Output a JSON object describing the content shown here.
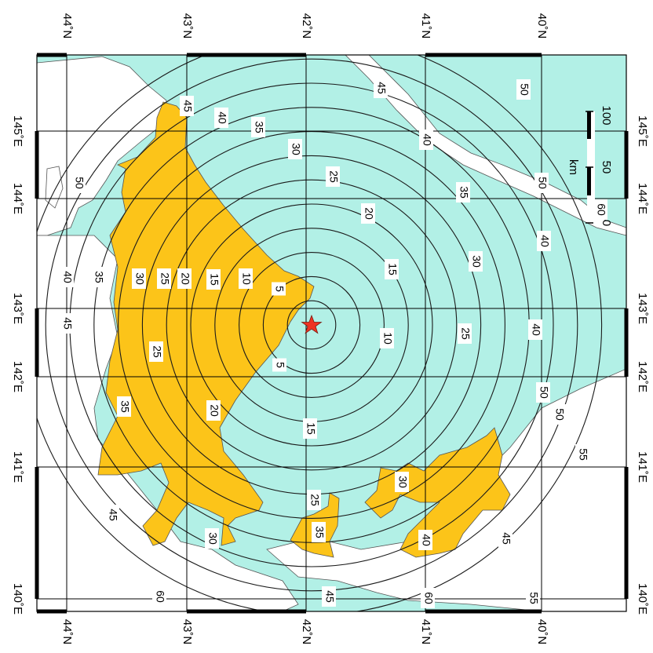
{
  "colors": {
    "sea": "#b2f0e6",
    "land": "#ffffff",
    "intensity_area": "#fcc419",
    "contour": "#1a1a1a",
    "grid": "#000000",
    "border": "#777777",
    "epicenter": "#ee3322"
  },
  "latitude_labels": [
    "44˚N",
    "43˚N",
    "42˚N",
    "41˚N",
    "40˚N"
  ],
  "longitude_labels": [
    "145˚E",
    "144˚E",
    "143˚E",
    "142˚E",
    "141˚E",
    "140˚E"
  ],
  "contour_labels": [
    "5",
    "5",
    "10",
    "10",
    "15",
    "15",
    "15",
    "20",
    "20",
    "20",
    "25",
    "25",
    "25",
    "25",
    "25",
    "30",
    "30",
    "30",
    "30",
    "30",
    "35",
    "35",
    "35",
    "35",
    "35",
    "40",
    "40",
    "40",
    "40",
    "40",
    "40",
    "45",
    "45",
    "45",
    "45",
    "45",
    "45",
    "50",
    "50",
    "50",
    "50",
    "50",
    "55",
    "55",
    "60",
    "60",
    "60"
  ],
  "epicenter_icon": "star-icon",
  "scale_bar": {
    "unit": "km",
    "ticks": [
      "0",
      "50",
      "100"
    ]
  }
}
